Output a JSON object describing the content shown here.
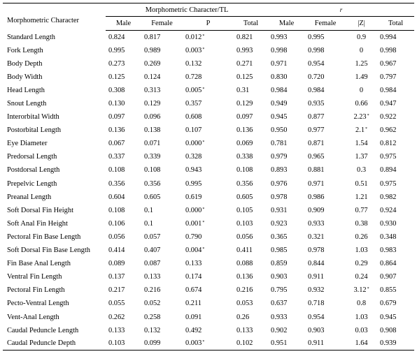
{
  "header": {
    "character_label": "Morphometric Character",
    "group_tl_label": "Morphometric Character/TL",
    "group_r_label": "r",
    "columns_tl": [
      "Male",
      "Female",
      "P",
      "Total"
    ],
    "columns_r": [
      "Male",
      "Female",
      "|Z|",
      "Total"
    ]
  },
  "significance_mark": "*",
  "rows": [
    {
      "name": "Standard Length",
      "m": "0.824",
      "f": "0.817",
      "p": "0.012",
      "p_sig": true,
      "t": "0.821",
      "rm": "0.993",
      "rf": "0.995",
      "z": "0.9",
      "z_sig": false,
      "rt": "0.994"
    },
    {
      "name": "Fork Length",
      "m": "0.995",
      "f": "0.989",
      "p": "0.003",
      "p_sig": true,
      "t": "0.993",
      "rm": "0.998",
      "rf": "0.998",
      "z": "0",
      "z_sig": false,
      "rt": "0.998"
    },
    {
      "name": "Body Depth",
      "m": "0.273",
      "f": "0.269",
      "p": "0.132",
      "p_sig": false,
      "t": "0.271",
      "rm": "0.971",
      "rf": "0.954",
      "z": "1.25",
      "z_sig": false,
      "rt": "0.967"
    },
    {
      "name": "Body Width",
      "m": "0.125",
      "f": "0.124",
      "p": "0.728",
      "p_sig": false,
      "t": "0.125",
      "rm": "0.830",
      "rf": "0.720",
      "z": "1.49",
      "z_sig": false,
      "rt": "0.797"
    },
    {
      "name": "Head Length",
      "m": "0.308",
      "f": "0.313",
      "p": "0.005",
      "p_sig": true,
      "t": "0.31",
      "rm": "0.984",
      "rf": "0.984",
      "z": "0",
      "z_sig": false,
      "rt": "0.984"
    },
    {
      "name": "Snout Length",
      "m": "0.130",
      "f": "0.129",
      "p": "0.357",
      "p_sig": false,
      "t": "0.129",
      "rm": "0.949",
      "rf": "0.935",
      "z": "0.66",
      "z_sig": false,
      "rt": "0.947"
    },
    {
      "name": "Interorbital Width",
      "m": "0.097",
      "f": "0.096",
      "p": "0.608",
      "p_sig": false,
      "t": "0.097",
      "rm": "0.945",
      "rf": "0.877",
      "z": "2.23",
      "z_sig": true,
      "rt": "0.922"
    },
    {
      "name": "Postorbital Length",
      "m": "0.136",
      "f": "0.138",
      "p": "0.107",
      "p_sig": false,
      "t": "0.136",
      "rm": "0.950",
      "rf": "0.977",
      "z": "2.1",
      "z_sig": true,
      "rt": "0.962"
    },
    {
      "name": "Eye Diameter",
      "m": "0.067",
      "f": "0.071",
      "p": "0.000",
      "p_sig": true,
      "t": "0.069",
      "rm": "0.781",
      "rf": "0.871",
      "z": "1.54",
      "z_sig": false,
      "rt": "0.812"
    },
    {
      "name": "Predorsal Length",
      "m": "0.337",
      "f": "0.339",
      "p": "0.328",
      "p_sig": false,
      "t": "0.338",
      "rm": "0.979",
      "rf": "0.965",
      "z": "1.37",
      "z_sig": false,
      "rt": "0.975"
    },
    {
      "name": "Postdorsal Length",
      "m": "0.108",
      "f": "0.108",
      "p": "0.943",
      "p_sig": false,
      "t": "0.108",
      "rm": "0.893",
      "rf": "0.881",
      "z": "0.3",
      "z_sig": false,
      "rt": "0.894"
    },
    {
      "name": "Prepelvic Length",
      "m": "0.356",
      "f": "0.356",
      "p": "0.995",
      "p_sig": false,
      "t": "0.356",
      "rm": "0.976",
      "rf": "0.971",
      "z": "0.51",
      "z_sig": false,
      "rt": "0.975"
    },
    {
      "name": "Preanal Length",
      "m": "0.604",
      "f": "0.605",
      "p": "0.619",
      "p_sig": false,
      "t": "0.605",
      "rm": "0.978",
      "rf": "0.986",
      "z": "1.21",
      "z_sig": false,
      "rt": "0.982"
    },
    {
      "name": "Soft Dorsal Fin Height",
      "m": "0.108",
      "f": "0.1",
      "p": "0.000",
      "p_sig": true,
      "t": "0.105",
      "rm": "0.931",
      "rf": "0.909",
      "z": "0.77",
      "z_sig": false,
      "rt": "0.924"
    },
    {
      "name": "Soft Anal Fin Height",
      "m": "0.106",
      "f": "0.1",
      "p": "0.001",
      "p_sig": true,
      "t": "0.103",
      "rm": "0.923",
      "rf": "0.933",
      "z": "0.38",
      "z_sig": false,
      "rt": "0.930"
    },
    {
      "name": "Pectoral Fin Base Length",
      "m": "0.056",
      "f": "0.057",
      "p": "0.790",
      "p_sig": false,
      "t": "0.056",
      "rm": "0.365",
      "rf": "0.321",
      "z": "0.26",
      "z_sig": false,
      "rt": "0.348"
    },
    {
      "name": "Soft Dorsal Fin Base Length",
      "m": "0.414",
      "f": "0.407",
      "p": "0.004",
      "p_sig": true,
      "t": "0.411",
      "rm": "0.985",
      "rf": "0.978",
      "z": "1.03",
      "z_sig": false,
      "rt": "0.983"
    },
    {
      "name": "Fin Base Anal Length",
      "m": "0.089",
      "f": "0.087",
      "p": "0.133",
      "p_sig": false,
      "t": "0.088",
      "rm": "0.859",
      "rf": "0.844",
      "z": "0.29",
      "z_sig": false,
      "rt": "0.864"
    },
    {
      "name": "Ventral Fin Length",
      "m": "0.137",
      "f": "0.133",
      "p": "0.174",
      "p_sig": false,
      "t": "0.136",
      "rm": "0.903",
      "rf": "0.911",
      "z": "0.24",
      "z_sig": false,
      "rt": "0.907"
    },
    {
      "name": "Pectoral Fin Length",
      "m": "0.217",
      "f": "0.216",
      "p": "0.674",
      "p_sig": false,
      "t": "0.216",
      "rm": "0.795",
      "rf": "0.932",
      "z": "3.12",
      "z_sig": true,
      "rt": "0.855"
    },
    {
      "name": "Pecto-Ventral Length",
      "m": "0.055",
      "f": "0.052",
      "p": "0.211",
      "p_sig": false,
      "t": "0.053",
      "rm": "0.637",
      "rf": "0.718",
      "z": "0.8",
      "z_sig": false,
      "rt": "0.679"
    },
    {
      "name": "Vent-Anal Length",
      "m": "0.262",
      "f": "0.258",
      "p": "0.091",
      "p_sig": false,
      "t": "0.26",
      "rm": "0.933",
      "rf": "0.954",
      "z": "1.03",
      "z_sig": false,
      "rt": "0.945"
    },
    {
      "name": "Caudal Peduncle Length",
      "m": "0.133",
      "f": "0.132",
      "p": "0.492",
      "p_sig": false,
      "t": "0.133",
      "rm": "0.902",
      "rf": "0.903",
      "z": "0.03",
      "z_sig": false,
      "rt": "0.908"
    },
    {
      "name": "Caudal Peduncle Depth",
      "m": "0.103",
      "f": "0.099",
      "p": "0.003",
      "p_sig": true,
      "t": "0.102",
      "rm": "0.951",
      "rf": "0.911",
      "z": "1.64",
      "z_sig": false,
      "rt": "0.939"
    }
  ]
}
